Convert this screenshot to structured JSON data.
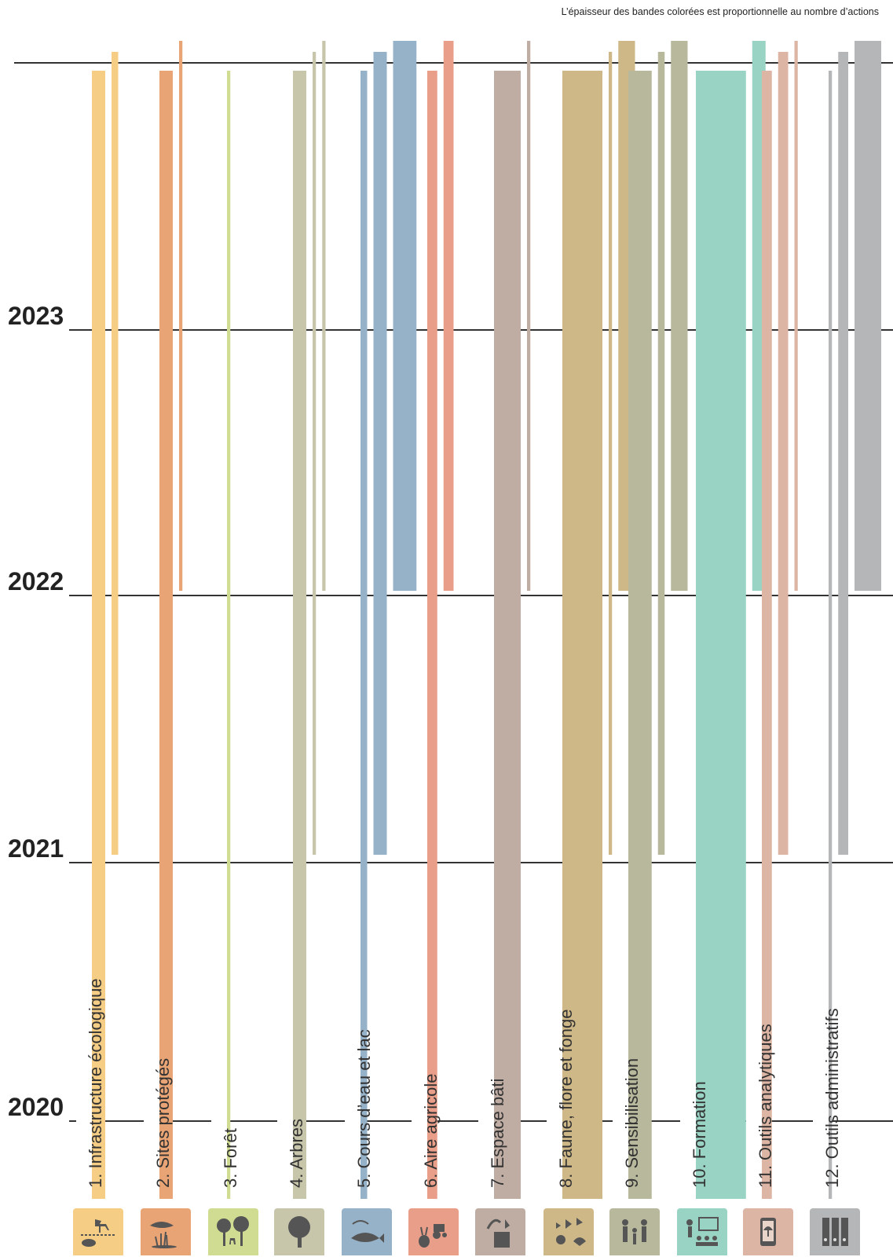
{
  "note": "L’épaisseur des bandes colorées est proportionnelle au nombre d’actions",
  "chart_data": {
    "type": "timeline-bands",
    "title": "",
    "years": [
      "2020",
      "2021",
      "2022",
      "2023"
    ],
    "categories": [
      {
        "number": "1.",
        "label": "Infrastructure écologique",
        "color": "#f5cd85",
        "icon": "deer-hedgehog-icon",
        "bands": [
          {
            "start": 2020,
            "end": 2024,
            "weight": 2
          },
          {
            "start": 2021,
            "end": 2024,
            "weight": 1
          }
        ]
      },
      {
        "number": "2.",
        "label": "Sites protégés",
        "color": "#e8a474",
        "icon": "hand-reeds-icon",
        "bands": [
          {
            "start": 2020,
            "end": 2024,
            "weight": 2
          },
          {
            "start": 2022,
            "end": 2024,
            "weight": 0.5
          }
        ]
      },
      {
        "number": "3.",
        "label": "Forêt",
        "color": "#cfdc92",
        "icon": "forest-deer-icon",
        "bands": [
          {
            "start": 2020,
            "end": 2024,
            "weight": 0.5
          }
        ]
      },
      {
        "number": "4.",
        "label": "Arbres",
        "color": "#c7c6ab",
        "icon": "tree-icon",
        "bands": [
          {
            "start": 2020,
            "end": 2024,
            "weight": 2
          },
          {
            "start": 2021,
            "end": 2024,
            "weight": 0.5
          },
          {
            "start": 2022,
            "end": 2024,
            "weight": 0.5
          }
        ]
      },
      {
        "number": "5.",
        "label": "Cours d’eau et lac",
        "color": "#96b2c8",
        "icon": "fish-icon",
        "bands": [
          {
            "start": 2020,
            "end": 2024,
            "weight": 1
          },
          {
            "start": 2021,
            "end": 2024,
            "weight": 2
          },
          {
            "start": 2022,
            "end": 2024,
            "weight": 3.5
          }
        ]
      },
      {
        "number": "6.",
        "label": "Aire agricole",
        "color": "#e89e88",
        "icon": "tractor-rabbit-icon",
        "bands": [
          {
            "start": 2020,
            "end": 2024,
            "weight": 1.5
          },
          {
            "start": 2022,
            "end": 2024,
            "weight": 1.5
          }
        ]
      },
      {
        "number": "7.",
        "label": "Espace bâti",
        "color": "#bfaca2",
        "icon": "building-bird-icon",
        "bands": [
          {
            "start": 2020,
            "end": 2024,
            "weight": 4
          },
          {
            "start": 2022,
            "end": 2024,
            "weight": 0.5
          }
        ]
      },
      {
        "number": "8.",
        "label": "Faune, flore et fonge",
        "color": "#cfb887",
        "icon": "butterfly-bird-icon",
        "bands": [
          {
            "start": 2020,
            "end": 2024,
            "weight": 6
          },
          {
            "start": 2021,
            "end": 2024,
            "weight": 0.5
          },
          {
            "start": 2022,
            "end": 2024,
            "weight": 2.5
          }
        ]
      },
      {
        "number": "9.",
        "label": "Sensibilisation",
        "color": "#b7b89c",
        "icon": "people-icon",
        "bands": [
          {
            "start": 2020,
            "end": 2024,
            "weight": 3.5
          },
          {
            "start": 2021,
            "end": 2024,
            "weight": 1
          },
          {
            "start": 2022,
            "end": 2024,
            "weight": 2.5
          }
        ]
      },
      {
        "number": "10.",
        "label": "Formation",
        "color": "#98d3c3",
        "icon": "classroom-icon",
        "bands": [
          {
            "start": 2020,
            "end": 2024,
            "weight": 7.5
          },
          {
            "start": 2022,
            "end": 2024,
            "weight": 2
          }
        ]
      },
      {
        "number": "11.",
        "label": "Outils analytiques",
        "color": "#dcb5a4",
        "icon": "phone-mushroom-icon",
        "bands": [
          {
            "start": 2020,
            "end": 2024,
            "weight": 1.5
          },
          {
            "start": 2021,
            "end": 2024,
            "weight": 1.5
          },
          {
            "start": 2022,
            "end": 2024,
            "weight": 0.5
          }
        ]
      },
      {
        "number": "12.",
        "label": "Outils administratifs",
        "color": "#b5b6b8",
        "icon": "binders-icon",
        "bands": [
          {
            "start": 2020,
            "end": 2024,
            "weight": 0.5
          },
          {
            "start": 2021,
            "end": 2024,
            "weight": 1.5
          },
          {
            "start": 2022,
            "end": 2024,
            "weight": 4
          }
        ]
      }
    ]
  }
}
